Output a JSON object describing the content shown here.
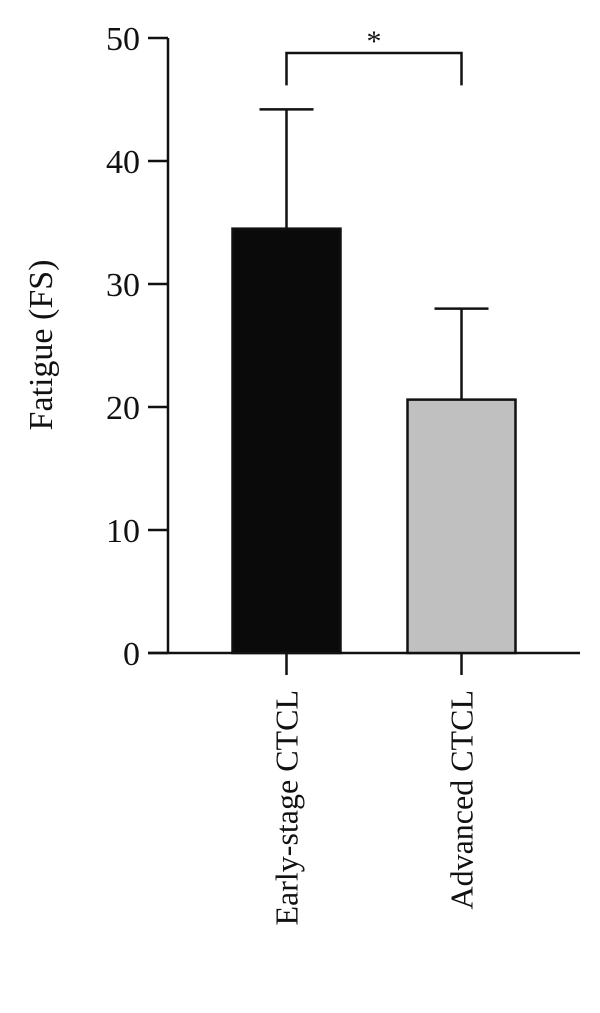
{
  "chart_data": {
    "type": "bar",
    "ylabel": "Fatigue (FS)",
    "categories": [
      "Early-stage CTCL",
      "Advanced CTCL"
    ],
    "values": [
      34.5,
      20.6
    ],
    "errors": [
      9.7,
      7.4
    ],
    "colors": [
      "#0a0a0a",
      "#c0c0c0"
    ],
    "ylim": [
      0,
      50
    ],
    "yticks": [
      0,
      10,
      20,
      30,
      40,
      50
    ],
    "significance": "*"
  }
}
